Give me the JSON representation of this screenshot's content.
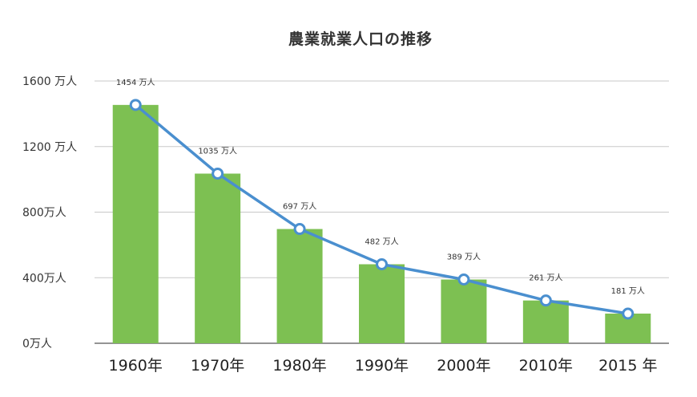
{
  "chart_data": {
    "type": "bar",
    "title": "農業就業人口の推移",
    "categories": [
      "1960年",
      "1970年",
      "1980年",
      "1990年",
      "2000年",
      "2010年",
      "2015 年"
    ],
    "values": [
      1454,
      1035,
      697,
      482,
      389,
      261,
      181
    ],
    "data_labels": [
      "1454 万人",
      "1035 万人",
      "697 万人",
      "482 万人",
      "389 万人",
      "261 万人",
      "181 万人"
    ],
    "overlay_line": true,
    "yticks": [
      0,
      400,
      800,
      1200,
      1600
    ],
    "ytick_labels": [
      "0万人",
      "400万人",
      "800万人",
      "1200 万人",
      "1600 万人"
    ],
    "ylim": [
      0,
      1600
    ],
    "grid": true,
    "legend": "none",
    "colors": {
      "bar": "#7dc052",
      "line": "#4a8fcf",
      "marker_fill": "#ffffff",
      "grid": "#c8c8c8"
    }
  }
}
